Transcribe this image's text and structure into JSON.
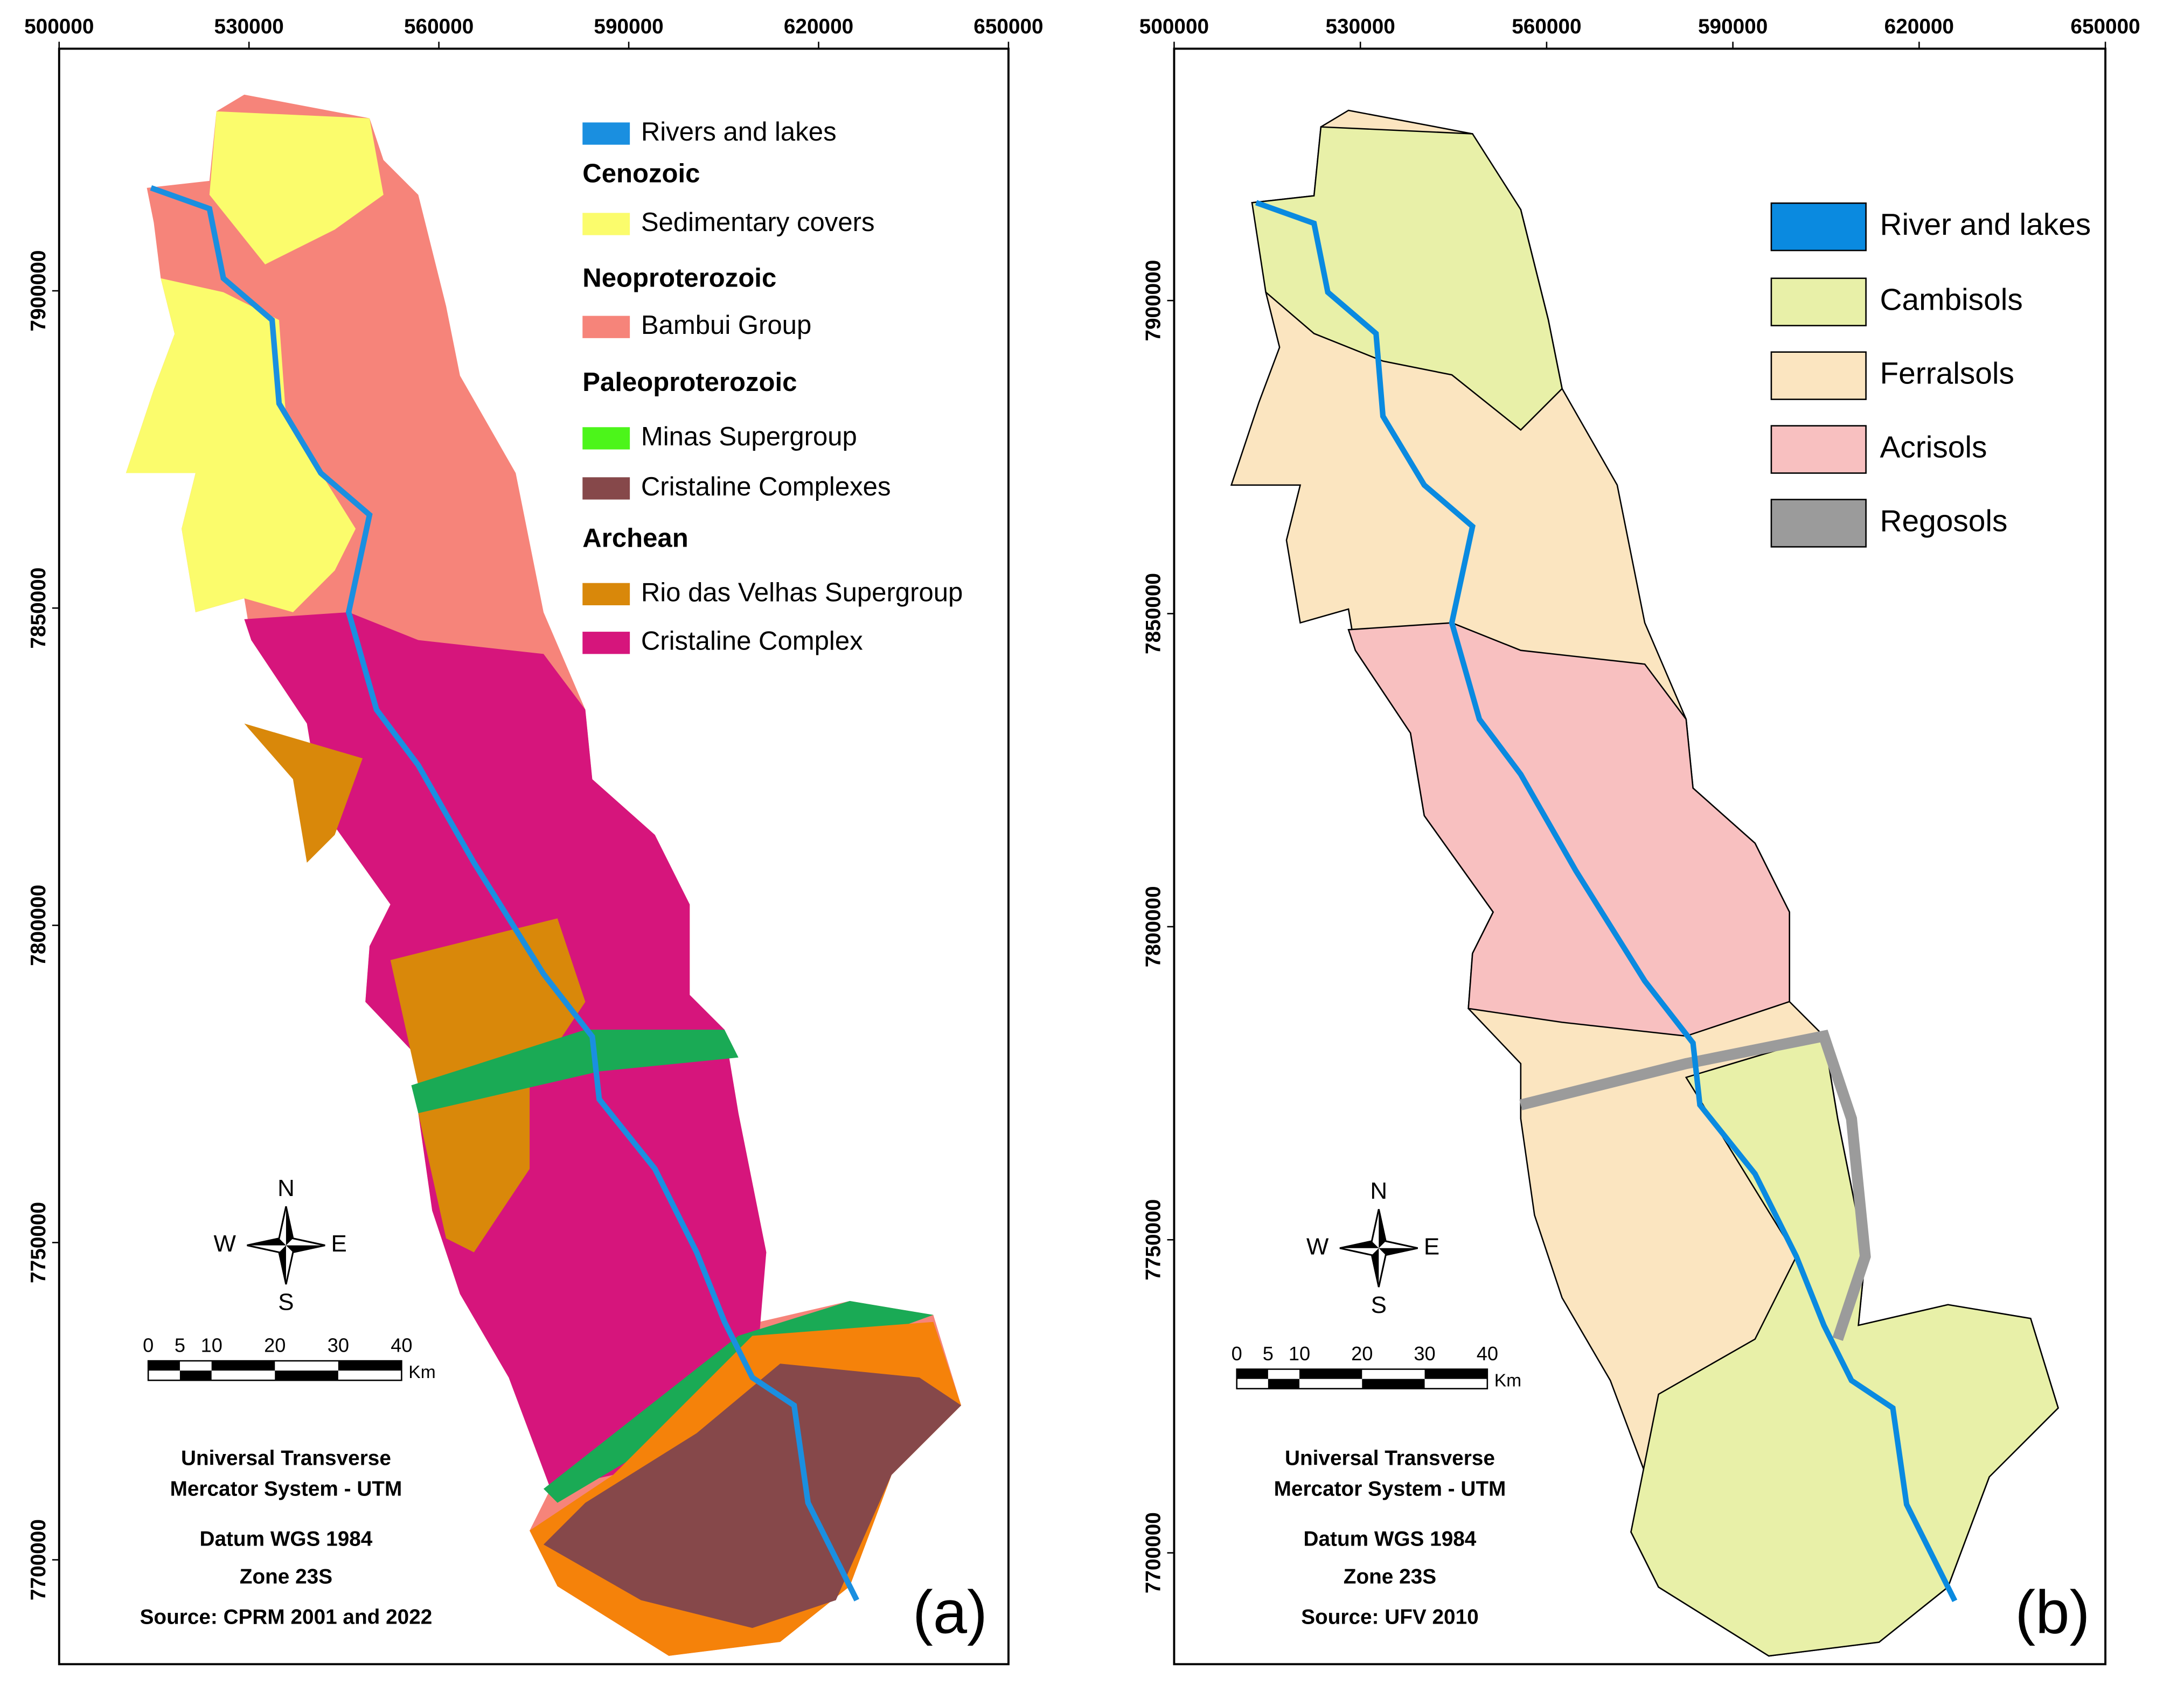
{
  "panels": [
    {
      "label": "(a)",
      "xticks": [
        500000,
        530000,
        560000,
        590000,
        620000,
        650000
      ],
      "yticks": [
        7900000,
        7850000,
        7800000,
        7750000,
        7700000
      ],
      "legend": [
        {
          "label": "Rivers and lakes",
          "color": "#1a8fe0"
        },
        {
          "label": "Cenozoic"
        },
        {
          "label": "Sedimentary covers",
          "color": "#fbfc6c"
        },
        {
          "label": "Neoproterozoic"
        },
        {
          "label": "Bambui Group",
          "color": "#f6847a"
        },
        {
          "label": "Paleoproterozoic"
        },
        {
          "label": "Minas Supergroup",
          "color": "#4cf51a"
        },
        {
          "label": "Cristaline Complexes",
          "color": "#86484a"
        },
        {
          "label": "Archean"
        },
        {
          "label": "Rio das Velhas Supergroup",
          "color": "#d9880a"
        },
        {
          "label": "Cristaline Complex",
          "color": "#d6157c"
        }
      ],
      "compass": {
        "n": "N",
        "e": "E",
        "s": "S",
        "w": "W"
      },
      "scale": {
        "ticks": [
          0,
          5,
          10,
          20,
          30,
          40
        ],
        "unit": "Km"
      },
      "notes": [
        "Universal Transverse",
        "Mercator System - UTM",
        "Datum  WGS 1984",
        "Zone 23S",
        "Source: CPRM 2001 and 2022"
      ]
    },
    {
      "label": "(b)",
      "xticks": [
        500000,
        530000,
        560000,
        590000,
        620000,
        650000
      ],
      "yticks": [
        7900000,
        7850000,
        7800000,
        7750000,
        7700000
      ],
      "legend": [
        {
          "label": "River and lakes",
          "color": "#0a8ae0"
        },
        {
          "label": "Cambisols",
          "color": "#e8f0a8"
        },
        {
          "label": "Ferralsols",
          "color": "#fbe5c0"
        },
        {
          "label": "Acrisols",
          "color": "#f8c0c0"
        },
        {
          "label": "Regosols",
          "color": "#9b9b9b"
        }
      ],
      "compass": {
        "n": "N",
        "e": "E",
        "s": "S",
        "w": "W"
      },
      "scale": {
        "ticks": [
          0,
          5,
          10,
          20,
          30,
          40
        ],
        "unit": "Km"
      },
      "notes": [
        "Universal Transverse",
        "Mercator System - UTM",
        "Datum  WGS 1984",
        "Zone 23S",
        "Source: UFV 2010"
      ]
    }
  ]
}
